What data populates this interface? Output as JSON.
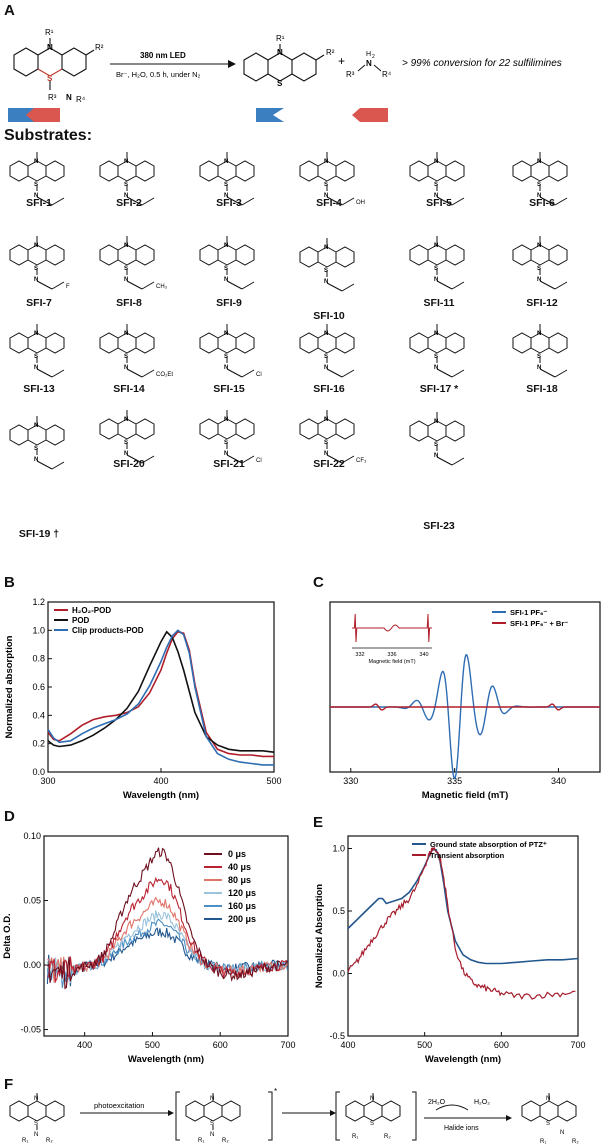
{
  "panel_labels": {
    "A": "A",
    "B": "B",
    "C": "C",
    "D": "D",
    "E": "E",
    "F": "F"
  },
  "panelA": {
    "condition_top": "380 nm LED",
    "condition_bottom": "Br⁻, H₂O, 0.5 h, under N₂",
    "result": "> 99% conversion for 22 sulfilimines",
    "r1": "R¹",
    "r2": "R²",
    "r3": "R³",
    "r4": "R⁴",
    "plus": "+",
    "substrates_title": "Substrates:",
    "colors": {
      "blue": "#3b7fc0",
      "red": "#d9574e"
    }
  },
  "substrates": [
    "SFI-1",
    "SFI-2",
    "SFI-3",
    "SFI-4",
    "SFI-5",
    "SFI-6",
    "SFI-7",
    "SFI-8",
    "SFI-9",
    "SFI-10",
    "SFI-11",
    "SFI-12",
    "SFI-13",
    "SFI-14",
    "SFI-15",
    "SFI-16",
    "SFI-17",
    "SFI-18",
    "SFI-19",
    "SFI-20",
    "SFI-21",
    "SFI-22",
    "SFI-23"
  ],
  "substrate_marks": {
    "SFI-17": "*",
    "SFI-19": "†"
  },
  "fragments": {
    "oh": "OH",
    "f": "F",
    "ch3": "CH₃",
    "co2et": "CO₂Et",
    "cl": "Cl",
    "cf3": "CF₃"
  },
  "panelF": {
    "step1": "photoexcitation",
    "water": "2H₂O",
    "peroxide": "H₂O₂",
    "halide": "Halide ions",
    "excited_mark": "*",
    "r_left": "R₁",
    "r_right": "R₂"
  },
  "chart_data": [
    {
      "id": "B",
      "type": "line",
      "xlabel": "Wavelength (nm)",
      "ylabel": "Normalized absorption",
      "xlim": [
        300,
        500
      ],
      "ylim": [
        0,
        1.2
      ],
      "xticks": [
        300,
        400,
        500
      ],
      "yticks": [
        0.0,
        0.2,
        0.4,
        0.6,
        0.8,
        1.0,
        1.2
      ],
      "legend_position": "top-left",
      "series": [
        {
          "name": "H₂O₂-POD",
          "color": "#b01e2a",
          "x": [
            300,
            305,
            310,
            320,
            330,
            340,
            350,
            360,
            370,
            380,
            390,
            400,
            405,
            410,
            415,
            420,
            425,
            430,
            440,
            450,
            460,
            470,
            480,
            490,
            500
          ],
          "y": [
            0.28,
            0.23,
            0.22,
            0.27,
            0.33,
            0.37,
            0.39,
            0.4,
            0.42,
            0.46,
            0.56,
            0.72,
            0.84,
            0.94,
            0.99,
            0.98,
            0.86,
            0.62,
            0.28,
            0.16,
            0.13,
            0.12,
            0.12,
            0.11,
            0.11
          ]
        },
        {
          "name": "POD",
          "color": "#111111",
          "x": [
            300,
            305,
            310,
            320,
            330,
            340,
            350,
            360,
            370,
            380,
            390,
            400,
            405,
            410,
            415,
            420,
            430,
            440,
            450,
            460,
            470,
            480,
            490,
            500
          ],
          "y": [
            0.22,
            0.19,
            0.18,
            0.19,
            0.22,
            0.26,
            0.31,
            0.37,
            0.45,
            0.57,
            0.75,
            0.92,
            0.99,
            0.95,
            0.85,
            0.72,
            0.42,
            0.25,
            0.19,
            0.16,
            0.15,
            0.15,
            0.15,
            0.14
          ]
        },
        {
          "name": "Clip products-POD",
          "color": "#2f6db3",
          "x": [
            300,
            305,
            310,
            320,
            330,
            340,
            350,
            360,
            370,
            380,
            390,
            400,
            405,
            410,
            415,
            420,
            425,
            430,
            440,
            450,
            460,
            470,
            480,
            490,
            500
          ],
          "y": [
            0.3,
            0.24,
            0.21,
            0.22,
            0.27,
            0.31,
            0.34,
            0.37,
            0.41,
            0.48,
            0.61,
            0.78,
            0.88,
            0.96,
            1.0,
            0.97,
            0.84,
            0.6,
            0.25,
            0.13,
            0.09,
            0.07,
            0.06,
            0.05,
            0.05
          ]
        }
      ]
    },
    {
      "id": "C",
      "type": "line",
      "xlabel": "Magnetic field (mT)",
      "ylabel": "",
      "xlim": [
        329,
        342
      ],
      "xticks": [
        330,
        335,
        340
      ],
      "legend_position": "top-right",
      "series": [
        {
          "name": "SFI-1 PF₆⁻",
          "color": "#2f6db3"
        },
        {
          "name": "SFI-1 PF₆⁻ + Br⁻",
          "color": "#b01e2a"
        }
      ],
      "inset": {
        "xlabel": "Magnetic field (mT)",
        "xticks": [
          332,
          336,
          340
        ]
      }
    },
    {
      "id": "D",
      "type": "line",
      "xlabel": "Wavelength (nm)",
      "ylabel": "Delta O.D.",
      "xlim": [
        340,
        700
      ],
      "ylim": [
        -0.055,
        0.1
      ],
      "xticks": [
        400,
        500,
        600,
        700
      ],
      "yticks": [
        -0.05,
        0.0,
        0.05,
        0.1
      ],
      "legend_position": "top-right",
      "series": [
        {
          "name": "0 μs",
          "color": "#6e0f1f",
          "peak": 0.085
        },
        {
          "name": "40 μs",
          "color": "#b82232",
          "peak": 0.065
        },
        {
          "name": "80 μs",
          "color": "#e07469",
          "peak": 0.048
        },
        {
          "name": "120 μs",
          "color": "#9bc3dc",
          "peak": 0.038
        },
        {
          "name": "160 μs",
          "color": "#4b8fc4",
          "peak": 0.031
        },
        {
          "name": "200 μs",
          "color": "#23588f",
          "peak": 0.025
        }
      ]
    },
    {
      "id": "E",
      "type": "line",
      "xlabel": "Wavelength (nm)",
      "ylabel": "Normalized Absorption",
      "xlim": [
        400,
        700
      ],
      "ylim": [
        -0.5,
        1.1
      ],
      "xticks": [
        400,
        500,
        600,
        700
      ],
      "yticks": [
        -0.5,
        0.0,
        0.5,
        1.0
      ],
      "legend_position": "top-right",
      "series": [
        {
          "name": "Ground state absorption of PTZ⁺",
          "color": "#23588f",
          "x": [
            400,
            410,
            420,
            430,
            440,
            445,
            450,
            460,
            470,
            480,
            490,
            500,
            505,
            510,
            515,
            520,
            525,
            530,
            540,
            550,
            560,
            570,
            580,
            600,
            620,
            640,
            660,
            680,
            700
          ],
          "y": [
            0.36,
            0.42,
            0.48,
            0.54,
            0.6,
            0.6,
            0.56,
            0.58,
            0.6,
            0.65,
            0.74,
            0.86,
            0.93,
            0.99,
            0.99,
            0.9,
            0.72,
            0.5,
            0.26,
            0.15,
            0.11,
            0.09,
            0.08,
            0.08,
            0.09,
            0.1,
            0.11,
            0.11,
            0.12
          ]
        },
        {
          "name": "Transient absorption",
          "color": "#a51d2d",
          "x": [
            400,
            410,
            420,
            430,
            440,
            450,
            460,
            470,
            480,
            490,
            500,
            505,
            510,
            515,
            520,
            525,
            530,
            540,
            550,
            560,
            570,
            580,
            590,
            600,
            620,
            640,
            660,
            680,
            700
          ],
          "y": [
            0.02,
            0.08,
            0.17,
            0.26,
            0.34,
            0.42,
            0.48,
            0.54,
            0.6,
            0.7,
            0.86,
            0.94,
            1.0,
            0.99,
            0.92,
            0.76,
            0.55,
            0.2,
            0.02,
            -0.06,
            -0.1,
            -0.12,
            -0.14,
            -0.16,
            -0.18,
            -0.18,
            -0.17,
            -0.16,
            -0.14
          ]
        }
      ]
    }
  ]
}
